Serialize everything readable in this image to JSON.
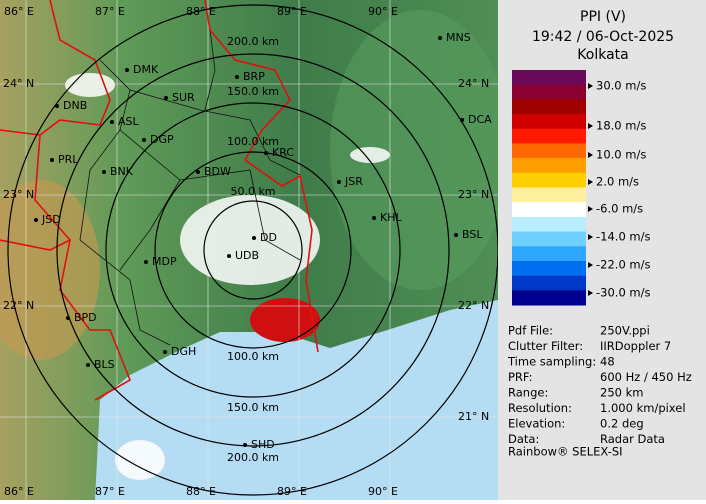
{
  "header": {
    "title": "PPI (V)",
    "datetime": "19:42 / 06-Oct-2025",
    "station": "Kolkata"
  },
  "legend": {
    "colors": [
      "#6a0a5a",
      "#8a0030",
      "#a00000",
      "#d00000",
      "#ff1a00",
      "#ff6a00",
      "#ffa000",
      "#ffd000",
      "#fff0a0",
      "#ffffff",
      "#b8ecff",
      "#70d0ff",
      "#30a8ff",
      "#0070f0",
      "#0038c8",
      "#000090"
    ],
    "labels": [
      "30.0 m/s",
      "18.0 m/s",
      "10.0 m/s",
      "2.0 m/s",
      "-6.0 m/s",
      "-14.0 m/s",
      "-22.0 m/s",
      "-30.0 m/s"
    ]
  },
  "info": {
    "rows": [
      [
        "Pdf File:",
        "250V.ppi"
      ],
      [
        "Clutter Filter:",
        "IIRDoppler 7"
      ],
      [
        "Time sampling:",
        "48"
      ],
      [
        "PRF:",
        "600 Hz / 450 Hz"
      ],
      [
        "Range:",
        "250 km"
      ],
      [
        "Resolution:",
        "1.000 km/pixel"
      ],
      [
        "Elevation:",
        "0.2 deg"
      ],
      [
        "Data:",
        "Radar Data"
      ]
    ]
  },
  "footer": "Rainbow® SELEX-SI",
  "map": {
    "lon_labels": [
      "86° E",
      "87° E",
      "88° E",
      "89° E",
      "90° E"
    ],
    "lat_labels_left": [
      "24° N",
      "23° N",
      "22° N"
    ],
    "lat_labels_right": [
      "24° N",
      "23° N",
      "22° N",
      "21° N"
    ],
    "range_labels": [
      "200.0 km",
      "150.0 km",
      "100.0 km",
      "50.0 km",
      "100.0 km",
      "150.0 km",
      "200.0 km"
    ],
    "cities": [
      "DMK",
      "BRP",
      "MNS",
      "DNB",
      "SUR",
      "ASL",
      "DGP",
      "DCA",
      "PRL",
      "BNK",
      "KRC",
      "BDW",
      "JSR",
      "JSD",
      "KHL",
      "BSL",
      "DD",
      "MDP",
      "UDB",
      "BPD",
      "BLS",
      "DGH",
      "SHD"
    ]
  }
}
